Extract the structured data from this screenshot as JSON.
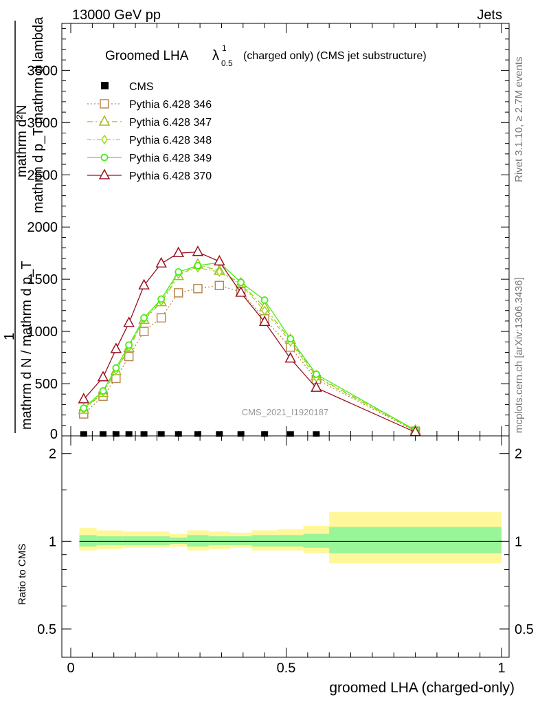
{
  "header": {
    "left": "13000 GeV pp",
    "right": "Jets",
    "side_rivet": "Rivet 3.1.10, ≥ 2.7M events",
    "side_mcplots": "mcplots.cern.ch [arXiv:1306.3436]"
  },
  "chart_data": {
    "type": "line",
    "title_main": "Groomed LHA",
    "title_lambda": "λ",
    "title_sup": "1",
    "title_sub": "0.5",
    "title_rest": "(charged only) (CMS jet substructure)",
    "watermark": "CMS_2021_I1920187",
    "ylabel_top_num": "mathrm d²N",
    "ylabel_top_den": "mathrm d p_T mathrm d lambda",
    "ylabel_one": "1",
    "ylabel_bottom_num": "mathrm d N / mathrm d p_T",
    "ylabel_bottom_den": "mathrm d N / mathrm d p_T",
    "ylabel_merged": "mathrm d N / mathrm d p_T mathrm d p_T mathrm dlambda",
    "xlabel": "groomed LHA (charged-only)",
    "ratio_ylabel": "Ratio to CMS",
    "xlim": [
      -0.04,
      1.0
    ],
    "ylim": [
      0,
      3950
    ],
    "ratio_ylim": [
      0.4,
      2.3
    ],
    "x_ticks": [
      {
        "v": 0,
        "label": "0"
      },
      {
        "v": 0.5,
        "label": "0.5"
      },
      {
        "v": 1,
        "label": "1"
      }
    ],
    "y_ticks": [
      {
        "v": 500,
        "label": "500"
      },
      {
        "v": 1000,
        "label": "1000"
      },
      {
        "v": 1500,
        "label": "1500"
      },
      {
        "v": 2000,
        "label": "2000"
      },
      {
        "v": 2500,
        "label": "2500"
      },
      {
        "v": 3000,
        "label": "3000"
      },
      {
        "v": 3500,
        "label": "3500"
      }
    ],
    "ratio_ticks": [
      {
        "v": 0.5,
        "label": "0.5"
      },
      {
        "v": 1,
        "label": "1"
      },
      {
        "v": 2,
        "label": "2"
      }
    ],
    "x": [
      0.03,
      0.075,
      0.105,
      0.135,
      0.17,
      0.21,
      0.25,
      0.295,
      0.345,
      0.395,
      0.45,
      0.51,
      0.57,
      0.8
    ],
    "bin_edges": [
      0.0,
      0.06,
      0.09,
      0.12,
      0.15,
      0.19,
      0.23,
      0.27,
      0.32,
      0.37,
      0.42,
      0.48,
      0.54,
      0.6,
      1.0
    ],
    "cms": {
      "name": "CMS",
      "values": [
        5,
        5,
        5,
        5,
        5,
        5,
        5,
        5,
        5,
        5,
        5,
        5,
        5,
        null
      ]
    },
    "series": [
      {
        "name": "Pythia 6.428 346",
        "color": "#b8894f",
        "dash": "2,3",
        "marker": "square",
        "values": [
          210,
          380,
          550,
          760,
          1000,
          1130,
          1370,
          1410,
          1440,
          1380,
          1120,
          850,
          540,
          45
        ]
      },
      {
        "name": "Pythia 6.428 347",
        "color": "#a8b820",
        "dash": "8,4,2,4",
        "marker": "triangle",
        "values": [
          250,
          410,
          620,
          840,
          1110,
          1280,
          1530,
          1640,
          1580,
          1460,
          1230,
          920,
          570,
          50
        ]
      },
      {
        "name": "Pythia 6.428 348",
        "color": "#9ed820",
        "dash": "6,3,2,3",
        "marker": "diamond",
        "values": [
          255,
          420,
          630,
          850,
          1120,
          1290,
          1550,
          1610,
          1570,
          1450,
          1200,
          900,
          560,
          50
        ]
      },
      {
        "name": "Pythia 6.428 349",
        "color": "#44ee11",
        "dash": "",
        "marker": "circle",
        "values": [
          265,
          430,
          650,
          870,
          1130,
          1310,
          1570,
          1630,
          1660,
          1470,
          1300,
          930,
          590,
          55
        ]
      },
      {
        "name": "Pythia 6.428 370",
        "color": "#9a1020",
        "dash": "",
        "marker": "triangle",
        "values": [
          350,
          560,
          830,
          1080,
          1440,
          1650,
          1750,
          1760,
          1670,
          1370,
          1090,
          740,
          460,
          35
        ]
      }
    ],
    "ratio_bands": {
      "edges": [
        0.02,
        0.06,
        0.09,
        0.12,
        0.15,
        0.19,
        0.23,
        0.27,
        0.32,
        0.37,
        0.42,
        0.48,
        0.54,
        0.6,
        1.0
      ],
      "inner": [
        [
          0.96,
          1.05
        ],
        [
          0.97,
          1.04
        ],
        [
          0.97,
          1.04
        ],
        [
          0.97,
          1.04
        ],
        [
          0.97,
          1.04
        ],
        [
          0.97,
          1.04
        ],
        [
          0.98,
          1.03
        ],
        [
          0.96,
          1.05
        ],
        [
          0.97,
          1.04
        ],
        [
          0.97,
          1.04
        ],
        [
          0.96,
          1.05
        ],
        [
          0.96,
          1.05
        ],
        [
          0.95,
          1.06
        ],
        [
          0.91,
          1.12
        ]
      ],
      "outer": [
        [
          0.93,
          1.11
        ],
        [
          0.94,
          1.09
        ],
        [
          0.94,
          1.09
        ],
        [
          0.95,
          1.08
        ],
        [
          0.95,
          1.08
        ],
        [
          0.95,
          1.08
        ],
        [
          0.96,
          1.06
        ],
        [
          0.93,
          1.09
        ],
        [
          0.94,
          1.08
        ],
        [
          0.95,
          1.07
        ],
        [
          0.93,
          1.09
        ],
        [
          0.93,
          1.1
        ],
        [
          0.91,
          1.13
        ],
        [
          0.84,
          1.26
        ]
      ]
    }
  }
}
